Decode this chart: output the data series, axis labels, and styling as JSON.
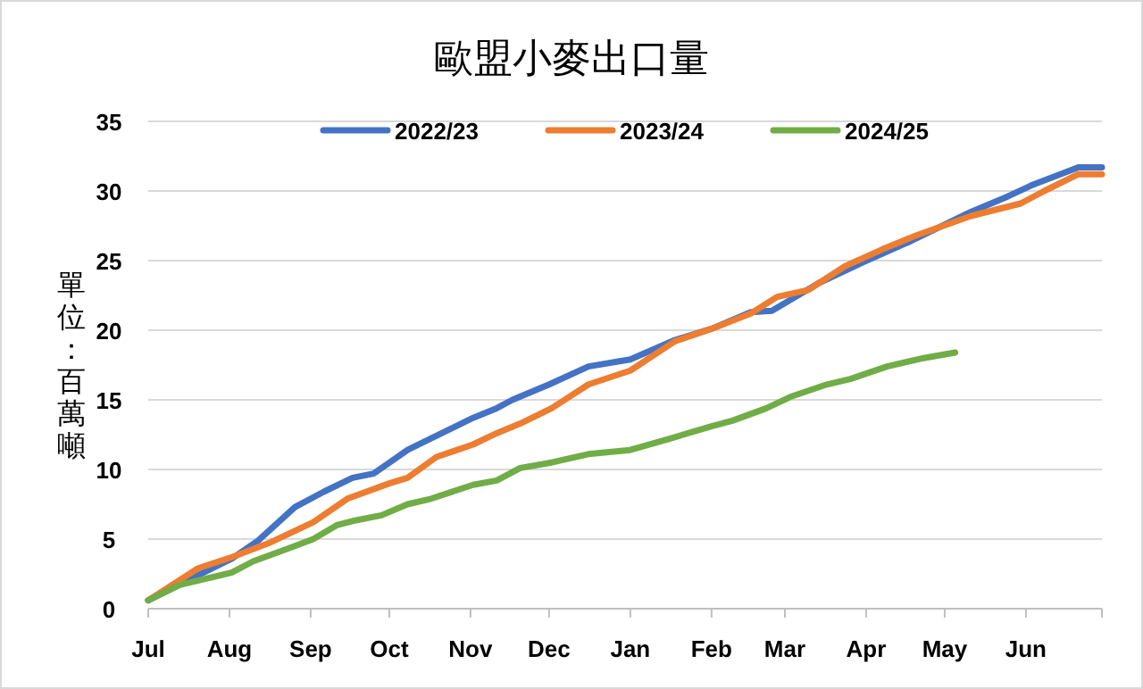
{
  "chart_data": {
    "type": "line",
    "title": "歐盟小麥出口量",
    "ylabel": "單位：百萬噸",
    "xlim": [
      "2024-07-01",
      "2025-06-30"
    ],
    "xticks": [
      {
        "value": "2024-07-01",
        "label": "Jul"
      },
      {
        "value": "2024-08-01",
        "label": "Aug"
      },
      {
        "value": "2024-09-01",
        "label": "Sep"
      },
      {
        "value": "2024-10-01",
        "label": "Oct"
      },
      {
        "value": "2024-11-01",
        "label": "Nov"
      },
      {
        "value": "2024-12-01",
        "label": "Dec"
      },
      {
        "value": "2025-01-01",
        "label": "Jan"
      },
      {
        "value": "2025-02-01",
        "label": "Feb"
      },
      {
        "value": "2025-03-01",
        "label": "Mar"
      },
      {
        "value": "2025-04-01",
        "label": "Apr"
      },
      {
        "value": "2025-05-01",
        "label": "May"
      },
      {
        "value": "2025-06-01",
        "label": "Jun"
      },
      {
        "value": "2025-06-30",
        "label": null
      }
    ],
    "ylim": [
      0,
      35
    ],
    "yticks": [
      0,
      5,
      10,
      15,
      20,
      25,
      30,
      35
    ],
    "grid": "y",
    "legend": "top",
    "line_style": "solid",
    "marker": "none",
    "series": [
      {
        "name": "2022/23",
        "color": "#4472c4",
        "x": [
          "2024-07-01",
          "2024-07-20",
          "2024-08-02",
          "2024-08-12",
          "2024-08-26",
          "2024-09-06",
          "2024-09-17",
          "2024-09-25",
          "2024-10-08",
          "2024-10-21",
          "2024-11-02",
          "2024-11-11",
          "2024-11-17",
          "2024-12-01",
          "2024-12-16",
          "2025-01-01",
          "2025-01-18",
          "2025-02-01",
          "2025-02-16",
          "2025-02-24",
          "2025-03-14",
          "2025-03-31",
          "2025-04-18",
          "2025-05-11",
          "2025-05-25",
          "2025-06-03",
          "2025-06-21",
          "2025-06-30"
        ],
        "values": [
          0.6,
          2.4,
          3.6,
          4.9,
          7.3,
          8.4,
          9.4,
          9.7,
          11.4,
          12.6,
          13.7,
          14.4,
          15.0,
          16.1,
          17.4,
          17.9,
          19.3,
          20.1,
          21.3,
          21.4,
          23.4,
          24.9,
          26.4,
          28.5,
          29.6,
          30.4,
          31.7,
          31.7
        ]
      },
      {
        "name": "2023/24",
        "color": "#ed7d31",
        "x": [
          "2024-07-01",
          "2024-07-20",
          "2024-08-02",
          "2024-08-16",
          "2024-09-02",
          "2024-09-15",
          "2024-10-01",
          "2024-10-08",
          "2024-10-19",
          "2024-11-02",
          "2024-11-11",
          "2024-11-20",
          "2024-12-02",
          "2024-12-16",
          "2025-01-01",
          "2025-01-18",
          "2025-02-01",
          "2025-02-16",
          "2025-02-26",
          "2025-03-10",
          "2025-03-24",
          "2025-04-07",
          "2025-04-20",
          "2025-05-11",
          "2025-05-30",
          "2025-06-08",
          "2025-06-21",
          "2025-06-30"
        ],
        "values": [
          0.6,
          2.9,
          3.7,
          4.7,
          6.2,
          7.9,
          9.0,
          9.4,
          10.9,
          11.8,
          12.6,
          13.3,
          14.4,
          16.1,
          17.1,
          19.2,
          20.1,
          21.2,
          22.4,
          22.9,
          24.6,
          25.8,
          26.8,
          28.2,
          29.1,
          30.0,
          31.2,
          31.2
        ]
      },
      {
        "name": "2024/25",
        "color": "#70ad47",
        "x": [
          "2024-07-01",
          "2024-07-13",
          "2024-08-02",
          "2024-08-10",
          "2024-08-26",
          "2024-09-02",
          "2024-09-11",
          "2024-09-17",
          "2024-09-28",
          "2024-10-08",
          "2024-10-17",
          "2024-11-02",
          "2024-11-11",
          "2024-11-20",
          "2024-12-02",
          "2024-12-16",
          "2025-01-01",
          "2025-01-16",
          "2025-02-01",
          "2025-02-09",
          "2025-02-22",
          "2025-03-03",
          "2025-03-17",
          "2025-03-26",
          "2025-04-09",
          "2025-04-23",
          "2025-05-05"
        ],
        "values": [
          0.6,
          1.7,
          2.6,
          3.4,
          4.5,
          5.0,
          6.0,
          6.3,
          6.7,
          7.5,
          7.9,
          8.9,
          9.2,
          10.1,
          10.5,
          11.1,
          11.4,
          12.2,
          13.1,
          13.5,
          14.4,
          15.2,
          16.1,
          16.5,
          17.4,
          18.0,
          18.4
        ]
      }
    ]
  }
}
